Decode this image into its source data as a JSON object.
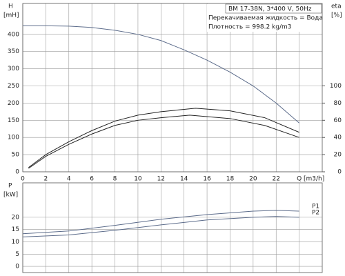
{
  "chart_data": [
    {
      "type": "line",
      "y_label_name": "H",
      "y_label_unit": "[mH]",
      "y2_label_name": "eta",
      "y2_label_unit": "[%]",
      "x_label": "[m3/h]",
      "annotations": [
        "BM 17-38N, 3*400 V, 50Hz",
        "Перекачиваемая жидкость = Вода",
        "Плотность = 998.2 kg/m3"
      ],
      "xlim": [
        0,
        26
      ],
      "xticks": [
        0,
        2,
        4,
        6,
        8,
        10,
        12,
        14,
        16,
        18,
        20,
        22,
        {
          "value": 24,
          "label": "Q"
        }
      ],
      "ylim": [
        0,
        490
      ],
      "yticks": [
        0,
        50,
        100,
        150,
        200,
        250,
        300,
        350,
        400
      ],
      "y2lim": [
        0,
        196
      ],
      "y2ticks": [
        0,
        20,
        40,
        60,
        80,
        100
      ],
      "grid": true,
      "series": [
        {
          "color": "#5b6b8a",
          "axis": "y",
          "x": [
            0,
            2,
            4,
            6,
            8,
            10,
            12,
            14,
            16,
            18,
            20,
            22,
            24
          ],
          "values": [
            425,
            425,
            424,
            420,
            412,
            400,
            382,
            355,
            325,
            290,
            250,
            200,
            142
          ]
        },
        {
          "color": "#222222",
          "axis": "y2",
          "x": [
            0.5,
            2,
            4,
            6,
            8,
            10,
            12,
            15,
            18,
            21,
            24
          ],
          "values": [
            5,
            20,
            35,
            48,
            59,
            66,
            70,
            74,
            71,
            63,
            46
          ]
        },
        {
          "color": "#222222",
          "axis": "y2",
          "x": [
            0.5,
            2,
            4,
            6,
            8,
            10,
            12,
            14.5,
            18,
            21,
            24
          ],
          "values": [
            4,
            18,
            32,
            44,
            54,
            60,
            63,
            66,
            62,
            54,
            40
          ]
        }
      ]
    },
    {
      "type": "line",
      "y_label_name": "P",
      "y_label_unit": "[kW]",
      "xlim": [
        0,
        26
      ],
      "xticks": [
        0,
        2,
        4,
        6,
        8,
        10,
        12,
        14,
        16,
        18,
        20,
        22,
        24
      ],
      "ylim": [
        -2.5,
        34
      ],
      "yticks": [
        0,
        5,
        10,
        15,
        20
      ],
      "grid": true,
      "series": [
        {
          "name": "P1",
          "color": "#5b6b8a",
          "x": [
            0,
            4,
            8,
            12,
            16,
            20,
            22,
            24
          ],
          "values": [
            13.3,
            14.4,
            16.7,
            19.2,
            21.1,
            22.5,
            22.8,
            22.5
          ]
        },
        {
          "name": "P2",
          "color": "#5b6b8a",
          "x": [
            0,
            4,
            8,
            12,
            16,
            20,
            22,
            24
          ],
          "values": [
            12,
            12.8,
            14.7,
            16.9,
            18.9,
            20,
            20.3,
            20
          ]
        }
      ]
    }
  ]
}
